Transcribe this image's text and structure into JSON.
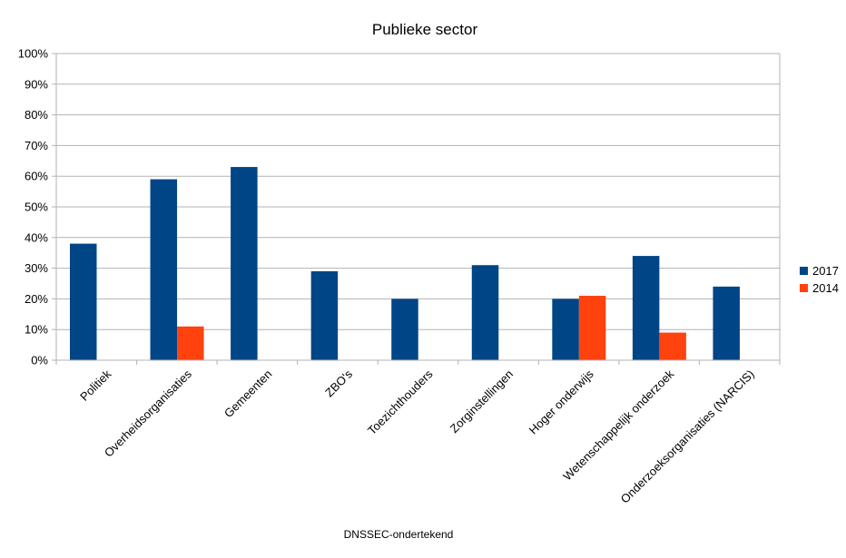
{
  "chart_data": {
    "type": "bar",
    "title": "Publieke sector",
    "xlabel": "DNSSEC-ondertekend",
    "ylabel": "",
    "ylim": [
      0,
      100
    ],
    "yticks": [
      0,
      10,
      20,
      30,
      40,
      50,
      60,
      70,
      80,
      90,
      100
    ],
    "ytick_labels": [
      "0%",
      "10%",
      "20%",
      "30%",
      "40%",
      "50%",
      "60%",
      "70%",
      "80%",
      "90%",
      "100%"
    ],
    "grid": true,
    "legend_position": "right",
    "categories": [
      "Politiek",
      "Overheidsorganisaties",
      "Gemeenten",
      "ZBO's",
      "Toezichthouders",
      "Zorginstellingen",
      "Hoger onderwijs",
      "Wetenschappelijk onderzoek",
      "Onderzoeksorganisaties (NARCIS)"
    ],
    "series": [
      {
        "name": "2017",
        "color": "#004586",
        "values": [
          38,
          59,
          63,
          29,
          20,
          31,
          20,
          34,
          24
        ]
      },
      {
        "name": "2014",
        "color": "#ff420e",
        "values": [
          null,
          11,
          null,
          null,
          null,
          null,
          21,
          9,
          null
        ]
      }
    ]
  }
}
